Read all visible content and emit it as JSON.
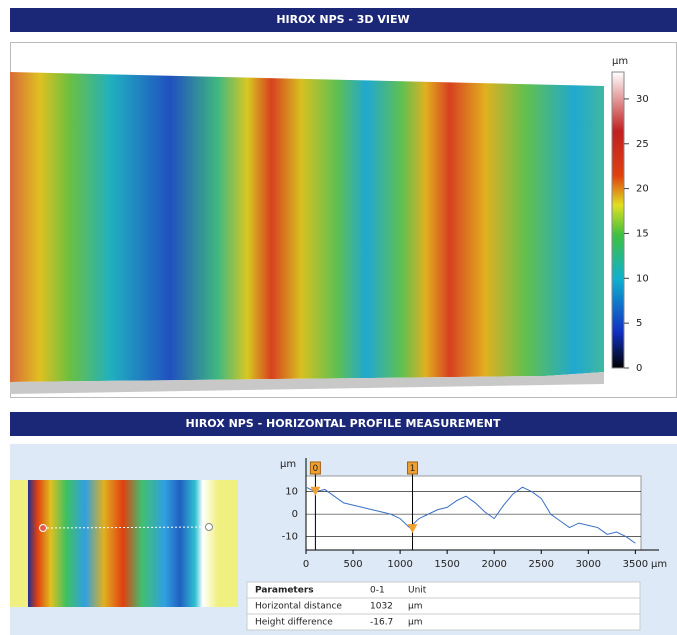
{
  "view3d": {
    "title": "HIROX NPS - 3D VIEW",
    "colorbar": {
      "unit": "µm",
      "lim": [
        0,
        33
      ],
      "ticks": [
        0,
        5,
        10,
        15,
        20,
        25,
        30
      ]
    }
  },
  "profile": {
    "title": "HIROX NPS - HORIZONTAL PROFILE MEASUREMENT",
    "chart_data": {
      "type": "line",
      "ylabel": "µm",
      "xlabel": "µm",
      "color": "#3a6fc4",
      "x": [
        0,
        100,
        200,
        300,
        400,
        500,
        600,
        700,
        800,
        900,
        1000,
        1100,
        1200,
        1300,
        1400,
        1500,
        1600,
        1700,
        1800,
        1900,
        2000,
        2100,
        2200,
        2300,
        2400,
        2500,
        2600,
        2700,
        2800,
        2900,
        3000,
        3100,
        3200,
        3300,
        3400,
        3500
      ],
      "values": [
        12,
        10,
        11,
        8,
        5,
        4,
        3,
        2,
        1,
        0,
        -2,
        -6,
        -2,
        0,
        2,
        3,
        6,
        8,
        5,
        1,
        -2,
        4,
        9,
        12,
        10,
        7,
        0,
        -3,
        -6,
        -4,
        -5,
        -6,
        -9,
        -8,
        -10,
        -13
      ],
      "xlim": [
        0,
        3560
      ],
      "ylim": [
        -16,
        17
      ],
      "xticks": [
        0,
        500,
        1000,
        1500,
        2000,
        2500,
        3000,
        3500
      ],
      "yticks": [
        -10,
        0,
        10
      ],
      "cursors": [
        {
          "label": "0",
          "x": 100,
          "y": 10
        },
        {
          "label": "1",
          "x": 1132,
          "y": -6.7
        }
      ]
    },
    "table": {
      "header": [
        "Parameters",
        "0-1",
        "Unit"
      ],
      "rows": [
        [
          "Horizontal distance",
          1032,
          "µm"
        ],
        [
          "Height difference",
          -16.7,
          "µm"
        ]
      ]
    }
  }
}
